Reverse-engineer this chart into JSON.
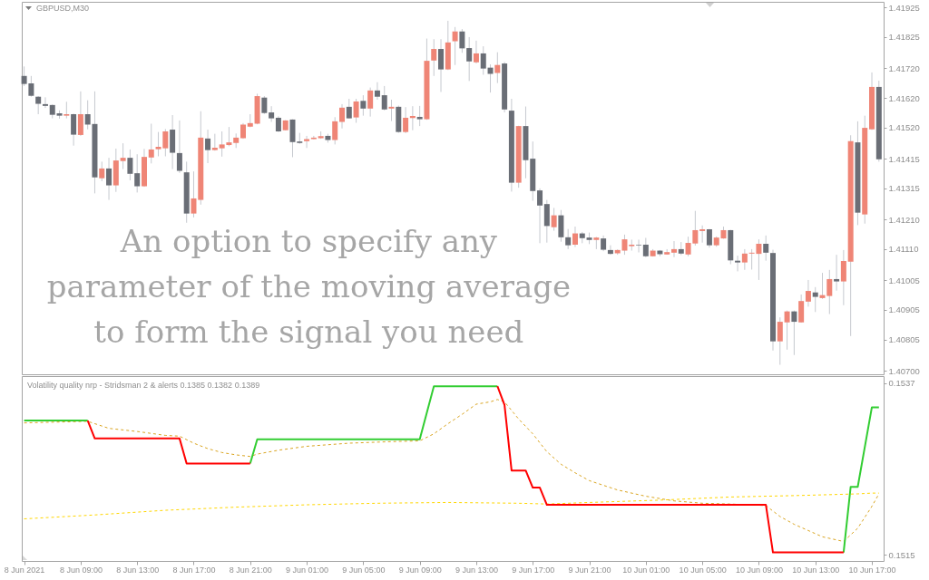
{
  "chart_data": [
    {
      "type": "candlestick",
      "title": "GBPUSD,M30",
      "annotations": [
        "An option to specify any parameter of the moving average to form the signal you need"
      ],
      "x": [
        "2021-06-08T05:00",
        "2021-06-08T05:30",
        "2021-06-08T06:00",
        "2021-06-08T06:30",
        "2021-06-08T07:00",
        "2021-06-08T07:30",
        "2021-06-08T08:00",
        "2021-06-08T08:30",
        "2021-06-08T09:00",
        "2021-06-08T09:30",
        "2021-06-08T10:00",
        "2021-06-08T10:30",
        "2021-06-08T11:00",
        "2021-06-08T11:30",
        "2021-06-08T12:00",
        "2021-06-08T12:30",
        "2021-06-08T13:00",
        "2021-06-08T13:30",
        "2021-06-08T14:00",
        "2021-06-08T14:30",
        "2021-06-08T15:00",
        "2021-06-08T15:30",
        "2021-06-08T16:00",
        "2021-06-08T16:30",
        "2021-06-08T17:00",
        "2021-06-08T17:30",
        "2021-06-08T18:00",
        "2021-06-08T18:30",
        "2021-06-08T19:00",
        "2021-06-08T19:30",
        "2021-06-08T20:00",
        "2021-06-08T20:30",
        "2021-06-08T21:00",
        "2021-06-08T21:30",
        "2021-06-08T22:00",
        "2021-06-08T22:30",
        "2021-06-08T23:00",
        "2021-06-08T23:30",
        "2021-06-09T00:00",
        "2021-06-09T00:30",
        "2021-06-09T01:00",
        "2021-06-09T01:30",
        "2021-06-09T02:00",
        "2021-06-09T02:30",
        "2021-06-09T03:00",
        "2021-06-09T03:30",
        "2021-06-09T04:00",
        "2021-06-09T04:30",
        "2021-06-09T05:00",
        "2021-06-09T05:30",
        "2021-06-09T06:00",
        "2021-06-09T06:30",
        "2021-06-09T07:00",
        "2021-06-09T07:30",
        "2021-06-09T08:00",
        "2021-06-09T08:30",
        "2021-06-09T09:00",
        "2021-06-09T09:30",
        "2021-06-09T10:00",
        "2021-06-09T10:30",
        "2021-06-09T11:00",
        "2021-06-09T11:30",
        "2021-06-09T12:00",
        "2021-06-09T12:30",
        "2021-06-09T13:00",
        "2021-06-09T13:30",
        "2021-06-09T14:00",
        "2021-06-09T14:30",
        "2021-06-09T15:00",
        "2021-06-09T15:30",
        "2021-06-09T16:00",
        "2021-06-09T16:30",
        "2021-06-09T17:00",
        "2021-06-09T17:30",
        "2021-06-09T18:00",
        "2021-06-09T18:30",
        "2021-06-09T19:00",
        "2021-06-09T19:30",
        "2021-06-09T20:00",
        "2021-06-09T20:30",
        "2021-06-09T21:00",
        "2021-06-09T21:30",
        "2021-06-09T22:00",
        "2021-06-09T22:30",
        "2021-06-09T23:00",
        "2021-06-09T23:30",
        "2021-06-10T00:00",
        "2021-06-10T00:30",
        "2021-06-10T01:00",
        "2021-06-10T01:30",
        "2021-06-10T02:00",
        "2021-06-10T02:30",
        "2021-06-10T03:00",
        "2021-06-10T03:30",
        "2021-06-10T04:00",
        "2021-06-10T04:30",
        "2021-06-10T05:00",
        "2021-06-10T05:30",
        "2021-06-10T06:00",
        "2021-06-10T06:30",
        "2021-06-10T07:00",
        "2021-06-10T07:30",
        "2021-06-10T08:00",
        "2021-06-10T08:30",
        "2021-06-10T09:00",
        "2021-06-10T09:30",
        "2021-06-10T10:00",
        "2021-06-10T10:30",
        "2021-06-10T11:00",
        "2021-06-10T11:30",
        "2021-06-10T12:00",
        "2021-06-10T12:30",
        "2021-06-10T13:00",
        "2021-06-10T13:30",
        "2021-06-10T14:00",
        "2021-06-10T14:30",
        "2021-06-10T15:00",
        "2021-06-10T15:30",
        "2021-06-10T16:00",
        "2021-06-10T16:30",
        "2021-06-10T17:00",
        "2021-06-10T17:30"
      ],
      "ohlc": [
        [
          1.41694,
          1.41726,
          1.4166,
          1.41667
        ],
        [
          1.41669,
          1.41694,
          1.41624,
          1.41627
        ],
        [
          1.41624,
          1.41626,
          1.41565,
          1.416
        ],
        [
          1.41599,
          1.41622,
          1.41586,
          1.41593
        ],
        [
          1.41596,
          1.41598,
          1.41551,
          1.41563
        ],
        [
          1.41568,
          1.41578,
          1.4155,
          1.4156
        ],
        [
          1.4156,
          1.41607,
          1.41551,
          1.41565
        ],
        [
          1.41565,
          1.41567,
          1.41459,
          1.41496
        ],
        [
          1.41495,
          1.41642,
          1.41492,
          1.41565
        ],
        [
          1.41565,
          1.41612,
          1.41514,
          1.4153
        ],
        [
          1.41532,
          1.41642,
          1.41298,
          1.41352
        ],
        [
          1.41349,
          1.41405,
          1.41339,
          1.41382
        ],
        [
          1.41382,
          1.41418,
          1.41276,
          1.41325
        ],
        [
          1.41325,
          1.41449,
          1.41303,
          1.41409
        ],
        [
          1.41407,
          1.41467,
          1.4138,
          1.41418
        ],
        [
          1.41418,
          1.41446,
          1.41342,
          1.41364
        ],
        [
          1.41366,
          1.4143,
          1.41301,
          1.41322
        ],
        [
          1.41322,
          1.41448,
          1.4132,
          1.41421
        ],
        [
          1.41419,
          1.41533,
          1.41399,
          1.41446
        ],
        [
          1.41447,
          1.41505,
          1.41423,
          1.41455
        ],
        [
          1.4145,
          1.41515,
          1.41423,
          1.41507
        ],
        [
          1.41513,
          1.41562,
          1.4138,
          1.41435
        ],
        [
          1.41434,
          1.41544,
          1.41367,
          1.41374
        ],
        [
          1.41369,
          1.41405,
          1.41199,
          1.4123
        ],
        [
          1.4123,
          1.41372,
          1.41217,
          1.41281
        ],
        [
          1.41276,
          1.41575,
          1.4126,
          1.41486
        ],
        [
          1.41483,
          1.41513,
          1.414,
          1.41444
        ],
        [
          1.41444,
          1.41499,
          1.41442,
          1.41452
        ],
        [
          1.4145,
          1.41507,
          1.41422,
          1.41463
        ],
        [
          1.41461,
          1.41522,
          1.41457,
          1.4147
        ],
        [
          1.41468,
          1.415,
          1.41451,
          1.41486
        ],
        [
          1.41484,
          1.41535,
          1.41482,
          1.4153
        ],
        [
          1.41523,
          1.41565,
          1.41521,
          1.41535
        ],
        [
          1.41533,
          1.41634,
          1.41531,
          1.41626
        ],
        [
          1.41621,
          1.41626,
          1.41566,
          1.41569
        ],
        [
          1.41571,
          1.41592,
          1.41539,
          1.41551
        ],
        [
          1.41553,
          1.41558,
          1.41505,
          1.41507
        ],
        [
          1.41511,
          1.41545,
          1.4151,
          1.41544
        ],
        [
          1.41547,
          1.41548,
          1.4142,
          1.41471
        ],
        [
          1.41473,
          1.41502,
          1.41465,
          1.41468
        ],
        [
          1.41474,
          1.41492,
          1.41451,
          1.41481
        ],
        [
          1.41481,
          1.41492,
          1.4148,
          1.41486
        ],
        [
          1.41484,
          1.41507,
          1.41482,
          1.41491
        ],
        [
          1.41492,
          1.41499,
          1.41469,
          1.41478
        ],
        [
          1.41478,
          1.41555,
          1.41463,
          1.41541
        ],
        [
          1.41539,
          1.41599,
          1.41517,
          1.41587
        ],
        [
          1.4159,
          1.41617,
          1.4155,
          1.41551
        ],
        [
          1.41554,
          1.41617,
          1.41536,
          1.41608
        ],
        [
          1.4161,
          1.41629,
          1.4156,
          1.41584
        ],
        [
          1.41584,
          1.41655,
          1.41557,
          1.41645
        ],
        [
          1.41645,
          1.41673,
          1.41614,
          1.41624
        ],
        [
          1.41629,
          1.4166,
          1.41578,
          1.41581
        ],
        [
          1.41584,
          1.41614,
          1.41542,
          1.4159
        ],
        [
          1.4159,
          1.41594,
          1.41502,
          1.41505
        ],
        [
          1.41505,
          1.41589,
          1.41501,
          1.41553
        ],
        [
          1.41552,
          1.41592,
          1.41511,
          1.41559
        ],
        [
          1.41556,
          1.41593,
          1.41525,
          1.41548
        ],
        [
          1.41548,
          1.4182,
          1.41546,
          1.41745
        ],
        [
          1.41746,
          1.41818,
          1.41694,
          1.41785
        ],
        [
          1.41785,
          1.41818,
          1.4164,
          1.41716
        ],
        [
          1.41716,
          1.4188,
          1.41714,
          1.41807
        ],
        [
          1.41811,
          1.41859,
          1.41731,
          1.41844
        ],
        [
          1.41844,
          1.41852,
          1.41772,
          1.41787
        ],
        [
          1.41788,
          1.41825,
          1.41677,
          1.41743
        ],
        [
          1.4174,
          1.41813,
          1.41736,
          1.4177
        ],
        [
          1.4177,
          1.41794,
          1.41698,
          1.41719
        ],
        [
          1.41722,
          1.41733,
          1.41638,
          1.41701
        ],
        [
          1.41704,
          1.41774,
          1.4167,
          1.41731
        ],
        [
          1.41736,
          1.41741,
          1.41571,
          1.41581
        ],
        [
          1.41577,
          1.41617,
          1.41304,
          1.41334
        ],
        [
          1.41334,
          1.41526,
          1.41317,
          1.41525
        ],
        [
          1.41525,
          1.41591,
          1.41349,
          1.4141
        ],
        [
          1.41415,
          1.41473,
          1.41273,
          1.41306
        ],
        [
          1.41308,
          1.41315,
          1.4113,
          1.41257
        ],
        [
          1.41262,
          1.41276,
          1.41132,
          1.41188
        ],
        [
          1.41184,
          1.41249,
          1.41172,
          1.41224
        ],
        [
          1.41224,
          1.41242,
          1.41135,
          1.4115
        ],
        [
          1.4115,
          1.41178,
          1.4111,
          1.41123
        ],
        [
          1.41125,
          1.41186,
          1.41117,
          1.41163
        ],
        [
          1.41163,
          1.41168,
          1.4113,
          1.41147
        ],
        [
          1.41149,
          1.41166,
          1.41127,
          1.41141
        ],
        [
          1.41141,
          1.41151,
          1.4111,
          1.41149
        ],
        [
          1.41146,
          1.41156,
          1.41103,
          1.41108
        ],
        [
          1.41107,
          1.41123,
          1.41091,
          1.41094
        ],
        [
          1.41096,
          1.41109,
          1.41091,
          1.41107
        ],
        [
          1.41105,
          1.41159,
          1.41091,
          1.41143
        ],
        [
          1.4112,
          1.41142,
          1.41105,
          1.41125
        ],
        [
          1.41125,
          1.41142,
          1.41099,
          1.41123
        ],
        [
          1.41125,
          1.41148,
          1.41083,
          1.41086
        ],
        [
          1.41086,
          1.4111,
          1.41085,
          1.41105
        ],
        [
          1.41105,
          1.41107,
          1.41086,
          1.41093
        ],
        [
          1.41092,
          1.4111,
          1.41091,
          1.411
        ],
        [
          1.41098,
          1.41137,
          1.41083,
          1.4111
        ],
        [
          1.4111,
          1.41134,
          1.4109,
          1.41095
        ],
        [
          1.41092,
          1.41152,
          1.41086,
          1.41131
        ],
        [
          1.41129,
          1.41239,
          1.41122,
          1.41174
        ],
        [
          1.41171,
          1.4119,
          1.41132,
          1.41177
        ],
        [
          1.41177,
          1.41178,
          1.41115,
          1.41123
        ],
        [
          1.41123,
          1.41153,
          1.41118,
          1.41149
        ],
        [
          1.41146,
          1.41186,
          1.41145,
          1.41174
        ],
        [
          1.41174,
          1.41175,
          1.41059,
          1.41072
        ],
        [
          1.41071,
          1.41088,
          1.41035,
          1.41065
        ],
        [
          1.41065,
          1.4111,
          1.4104,
          1.41095
        ],
        [
          1.41095,
          1.4111,
          1.41041,
          1.41098
        ],
        [
          1.41094,
          1.41143,
          1.41006,
          1.41128
        ],
        [
          1.41128,
          1.41156,
          1.41071,
          1.41098
        ],
        [
          1.41097,
          1.41108,
          1.40768,
          1.40799
        ],
        [
          1.40799,
          1.4088,
          1.4072,
          1.40865
        ],
        [
          1.40863,
          1.40903,
          1.40771,
          1.409
        ],
        [
          1.409,
          1.40903,
          1.40753,
          1.40865
        ],
        [
          1.40863,
          1.40957,
          1.40862,
          1.40935
        ],
        [
          1.40933,
          1.41006,
          1.40916,
          1.40969
        ],
        [
          1.40964,
          1.40982,
          1.40898,
          1.40949
        ],
        [
          1.40945,
          1.4103,
          1.40942,
          1.40955
        ],
        [
          1.40952,
          1.4104,
          1.40891,
          1.41009
        ],
        [
          1.41009,
          1.41091,
          1.4097,
          1.41001
        ],
        [
          1.41001,
          1.41107,
          1.40921,
          1.4107
        ],
        [
          1.41068,
          1.41494,
          1.40817,
          1.41474
        ],
        [
          1.4147,
          1.41541,
          1.41191,
          1.41233
        ],
        [
          1.41227,
          1.4156,
          1.41196,
          1.41519
        ],
        [
          1.41514,
          1.41706,
          1.41512,
          1.41657
        ],
        [
          1.41657,
          1.41678,
          1.41405,
          1.41413
        ]
      ],
      "colors": [
        "#6a6e76",
        "#6a6e76",
        "#6a6e76",
        "#6a6e76",
        "#6a6e76",
        "#6a6e76",
        "#ef8576",
        "#6a6e76",
        "#ef8576",
        "#6a6e76",
        "#6a6e76",
        "#ef8576",
        "#6a6e76",
        "#ef8576",
        "#ef8576",
        "#6a6e76",
        "#6a6e76",
        "#ef8576",
        "#ef8576",
        "#ef8576",
        "#ef8576",
        "#6a6e76",
        "#6a6e76",
        "#6a6e76",
        "#ef8576",
        "#ef8576",
        "#6a6e76",
        "#ef8576",
        "#ef8576",
        "#ef8576",
        "#ef8576",
        "#ef8576",
        "#ef8576",
        "#ef8576",
        "#6a6e76",
        "#6a6e76",
        "#6a6e76",
        "#ef8576",
        "#6a6e76",
        "#6a6e76",
        "#ef8576",
        "#ef8576",
        "#ef8576",
        "#6a6e76",
        "#ef8576",
        "#ef8576",
        "#6a6e76",
        "#ef8576",
        "#6a6e76",
        "#ef8576",
        "#6a6e76",
        "#6a6e76",
        "#ef8576",
        "#6a6e76",
        "#ef8576",
        "#ef8576",
        "#6a6e76",
        "#ef8576",
        "#ef8576",
        "#6a6e76",
        "#ef8576",
        "#ef8576",
        "#6a6e76",
        "#6a6e76",
        "#ef8576",
        "#6a6e76",
        "#6a6e76",
        "#ef8576",
        "#6a6e76",
        "#6a6e76",
        "#ef8576",
        "#6a6e76",
        "#6a6e76",
        "#6a6e76",
        "#6a6e76",
        "#ef8576",
        "#6a6e76",
        "#6a6e76",
        "#ef8576",
        "#6a6e76",
        "#6a6e76",
        "#ef8576",
        "#6a6e76",
        "#6a6e76",
        "#ef8576",
        "#ef8576",
        "#ef8576",
        "#6a6e76",
        "#6a6e76",
        "#ef8576",
        "#6a6e76",
        "#ef8576",
        "#ef8576",
        "#6a6e76",
        "#ef8576",
        "#ef8576",
        "#ef8576",
        "#6a6e76",
        "#ef8576",
        "#ef8576",
        "#6a6e76",
        "#6a6e76",
        "#ef8576",
        "#ef8576",
        "#ef8576",
        "#6a6e76",
        "#6a6e76",
        "#ef8576",
        "#ef8576",
        "#6a6e76",
        "#ef8576",
        "#ef8576",
        "#6a6e76",
        "#ef8576",
        "#ef8576",
        "#6a6e76",
        "#ef8576",
        "#ef8576",
        "#6a6e76",
        "#ef8576",
        "#ef8576",
        "#6a6e76"
      ],
      "xlim": [
        "2021-06-08T04:50",
        "2021-06-10T17:50"
      ],
      "ylim": [
        1.40688,
        1.41944
      ],
      "yticks": [
        1.41925,
        1.41825,
        {
          "value": 1.4172,
          "label": "1.41720"
        },
        {
          "value": 1.4162,
          "label": "1.41620"
        },
        {
          "value": 1.4152,
          "label": "1.41520"
        },
        1.41415,
        1.41315,
        {
          "value": 1.4121,
          "label": "1.41210"
        },
        {
          "value": 1.4111,
          "label": "1.41110"
        },
        1.41005,
        1.40905,
        1.40805,
        {
          "value": 1.407,
          "label": "1.40700"
        }
      ],
      "tick_labels": "y"
    },
    {
      "type": "line",
      "title": "Volatility quality nrp - Stridsman 2 & alerts 0.1385 0.1382 0.1389",
      "xlim": [
        "2021-06-08T04:50",
        "2021-06-10T17:50"
      ],
      "xticks": [
        {
          "value": "2021-06-08T05:00",
          "label": "8 Jun 2021"
        },
        {
          "value": "2021-06-08T09:00",
          "label": "8 Jun 09:00"
        },
        {
          "value": "2021-06-08T13:00",
          "label": "8 Jun 13:00"
        },
        {
          "value": "2021-06-08T17:00",
          "label": "8 Jun 17:00"
        },
        {
          "value": "2021-06-08T21:00",
          "label": "8 Jun 21:00"
        },
        {
          "value": "2021-06-09T01:00",
          "label": "9 Jun 01:00"
        },
        {
          "value": "2021-06-09T05:00",
          "label": "9 Jun 05:00"
        },
        {
          "value": "2021-06-09T09:00",
          "label": "9 Jun 09:00"
        },
        {
          "value": "2021-06-09T13:00",
          "label": "9 Jun 13:00"
        },
        {
          "value": "2021-06-09T17:00",
          "label": "9 Jun 17:00"
        },
        {
          "value": "2021-06-09T21:00",
          "label": "9 Jun 21:00"
        },
        {
          "value": "2021-06-10T01:00",
          "label": "10 Jun 01:00"
        },
        {
          "value": "2021-06-10T05:00",
          "label": "10 Jun 05:00"
        },
        {
          "value": "2021-06-10T09:00",
          "label": "10 Jun 09:00"
        },
        {
          "value": "2021-06-10T13:00",
          "label": "10 Jun 13:00"
        },
        {
          "value": "2021-06-10T17:00",
          "label": "10 Jun 17:00"
        }
      ],
      "ylim": [
        0.15142,
        0.15379
      ],
      "yticks": [
        0.1515,
        0.1537
      ],
      "series": [
        {
          "color": "#ffd700",
          "line_style": "dashed",
          "x": [
            "2021-06-08T05:00",
            "2021-06-08T10:00",
            "2021-06-08T15:00",
            "2021-06-08T20:00",
            "2021-06-09T01:00",
            "2021-06-09T06:00",
            "2021-06-09T11:00",
            "2021-06-09T16:00",
            "2021-06-09T18:00",
            "2021-06-09T21:00",
            "2021-06-10T02:00",
            "2021-06-10T07:00",
            "2021-06-10T12:00",
            "2021-06-10T16:00",
            "2021-06-10T17:00",
            "2021-06-10T17:30"
          ],
          "values": [
            0.15196,
            0.15201,
            0.15207,
            0.15211,
            0.15214,
            0.15216,
            0.15217,
            0.15216,
            0.15215,
            0.15217,
            0.1522,
            0.15224,
            0.15226,
            0.15228,
            0.15229,
            0.15229
          ]
        },
        {
          "color": "#daa520",
          "line_style": "dashed",
          "x": [
            "2021-06-08T05:00",
            "2021-06-08T09:30",
            "2021-06-08T11:00",
            "2021-06-08T13:00",
            "2021-06-08T15:00",
            "2021-06-08T16:00",
            "2021-06-08T17:00",
            "2021-06-08T18:00",
            "2021-06-08T19:00",
            "2021-06-08T20:00",
            "2021-06-08T21:00",
            "2021-06-08T21:30",
            "2021-06-08T23:00",
            "2021-06-09T01:00",
            "2021-06-09T04:00",
            "2021-06-09T07:00",
            "2021-06-09T09:00",
            "2021-06-09T10:00",
            "2021-06-09T11:00",
            "2021-06-09T12:00",
            "2021-06-09T13:00",
            "2021-06-09T14:00",
            "2021-06-09T14:30",
            "2021-06-09T15:00",
            "2021-06-09T16:00",
            "2021-06-09T17:00",
            "2021-06-09T18:00",
            "2021-06-09T19:00",
            "2021-06-09T20:00",
            "2021-06-09T21:00",
            "2021-06-09T23:00",
            "2021-06-10T01:00",
            "2021-06-10T03:00",
            "2021-06-10T05:00",
            "2021-06-10T07:00",
            "2021-06-10T09:30",
            "2021-06-10T10:30",
            "2021-06-10T11:30",
            "2021-06-10T12:30",
            "2021-06-10T13:30",
            "2021-06-10T14:30",
            "2021-06-10T15:00",
            "2021-06-10T16:00",
            "2021-06-10T17:00",
            "2021-06-10T17:30"
          ],
          "values": [
            0.15319,
            0.15321,
            0.15312,
            0.15308,
            0.15303,
            0.15302,
            0.15293,
            0.15286,
            0.15281,
            0.15278,
            0.15276,
            0.15279,
            0.15284,
            0.15289,
            0.15293,
            0.15295,
            0.15296,
            0.15305,
            0.15318,
            0.1533,
            0.15343,
            0.15346,
            0.15349,
            0.15346,
            0.15324,
            0.15305,
            0.15282,
            0.15266,
            0.15255,
            0.15245,
            0.15233,
            0.15225,
            0.15219,
            0.15216,
            0.15215,
            0.15213,
            0.15199,
            0.15189,
            0.15181,
            0.15173,
            0.15169,
            0.15167,
            0.15184,
            0.15212,
            0.15228
          ]
        },
        {
          "color": "#32cd32",
          "line_style": "solid",
          "x": [
            "2021-06-08T05:00",
            "2021-06-08T09:30",
            "2021-06-08T10:00",
            "2021-06-08T21:00",
            "2021-06-08T21:30",
            "2021-06-09T09:00",
            "2021-06-09T10:00",
            "2021-06-09T14:30",
            "2021-06-09T15:00",
            "2021-06-10T15:00",
            "2021-06-10T15:30",
            "2021-06-10T16:00",
            "2021-06-10T17:00",
            "2021-06-10T17:30"
          ],
          "values": [
            0.15322,
            0.15322,
            null,
            0.15267,
            0.15298,
            0.15298,
            0.15366,
            0.15366,
            null,
            0.15153,
            0.15237,
            0.15237,
            0.15339,
            0.15339
          ]
        },
        {
          "color": "#ff0000",
          "line_style": "solid",
          "x": [
            "2021-06-08T09:30",
            "2021-06-08T10:00",
            "2021-06-08T16:00",
            "2021-06-08T16:30",
            "2021-06-08T21:00",
            "2021-06-08T21:30",
            "2021-06-09T14:30",
            "2021-06-09T15:00",
            "2021-06-09T15:30",
            "2021-06-09T16:30",
            "2021-06-09T17:00",
            "2021-06-09T17:30",
            "2021-06-09T18:00",
            "2021-06-10T09:30",
            "2021-06-10T10:00",
            "2021-06-10T15:00"
          ],
          "values": [
            0.15322,
            0.15299,
            0.15299,
            0.15267,
            0.15267,
            null,
            0.15366,
            0.15342,
            0.15258,
            0.15258,
            0.15236,
            0.15236,
            0.15214,
            0.15214,
            0.15153,
            0.15153
          ]
        }
      ]
    }
  ]
}
